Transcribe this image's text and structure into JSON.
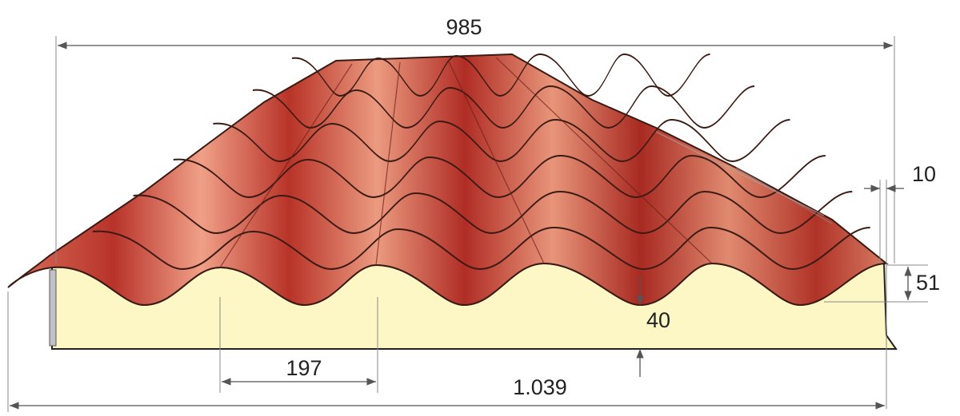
{
  "dimensions": [
    "985",
    "10",
    "51",
    "40",
    "197",
    "1.039"
  ]
}
